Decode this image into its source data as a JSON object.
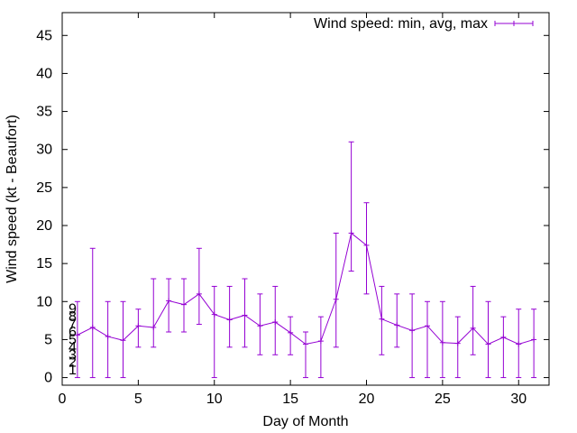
{
  "chart_data": {
    "type": "line",
    "title": "",
    "xlabel": "Day of Month",
    "ylabel": "Wind speed (kt - Beaufort)",
    "xlim": [
      0,
      32
    ],
    "ylim": [
      -1,
      48
    ],
    "x_ticks": [
      0,
      5,
      10,
      15,
      20,
      25,
      30
    ],
    "y_ticks": [
      0,
      5,
      10,
      15,
      20,
      25,
      30,
      35,
      40,
      45
    ],
    "grid": false,
    "legend_position": "top-right",
    "error_bars": true,
    "series": [
      {
        "name": "Wind speed: min, avg, max",
        "color": "#9400d3",
        "points": [
          {
            "x": 1,
            "avg": 5.6,
            "min": 0,
            "max": 10
          },
          {
            "x": 2,
            "avg": 6.6,
            "min": 0,
            "max": 17
          },
          {
            "x": 3,
            "avg": 5.4,
            "min": 0,
            "max": 10
          },
          {
            "x": 4,
            "avg": 4.9,
            "min": 0,
            "max": 10
          },
          {
            "x": 5,
            "avg": 6.8,
            "min": 4,
            "max": 9
          },
          {
            "x": 6,
            "avg": 6.6,
            "min": 4,
            "max": 13
          },
          {
            "x": 7,
            "avg": 10.1,
            "min": 6,
            "max": 13
          },
          {
            "x": 8,
            "avg": 9.6,
            "min": 6,
            "max": 13
          },
          {
            "x": 9,
            "avg": 11.0,
            "min": 7,
            "max": 17
          },
          {
            "x": 10,
            "avg": 8.3,
            "min": 0,
            "max": 12
          },
          {
            "x": 11,
            "avg": 7.6,
            "min": 4,
            "max": 12
          },
          {
            "x": 12,
            "avg": 8.2,
            "min": 4,
            "max": 13
          },
          {
            "x": 13,
            "avg": 6.8,
            "min": 3,
            "max": 11
          },
          {
            "x": 14,
            "avg": 7.3,
            "min": 3,
            "max": 12
          },
          {
            "x": 15,
            "avg": 5.9,
            "min": 3,
            "max": 8
          },
          {
            "x": 16,
            "avg": 4.4,
            "min": 0,
            "max": 6
          },
          {
            "x": 17,
            "avg": 4.8,
            "min": 0,
            "max": 8
          },
          {
            "x": 18,
            "avg": 10.3,
            "min": 4,
            "max": 19
          },
          {
            "x": 19,
            "avg": 19.0,
            "min": 14,
            "max": 31
          },
          {
            "x": 20,
            "avg": 17.4,
            "min": 11,
            "max": 23
          },
          {
            "x": 21,
            "avg": 7.7,
            "min": 3,
            "max": 12
          },
          {
            "x": 22,
            "avg": 6.9,
            "min": 4,
            "max": 11
          },
          {
            "x": 23,
            "avg": 6.2,
            "min": 0,
            "max": 11
          },
          {
            "x": 24,
            "avg": 6.8,
            "min": 0,
            "max": 10
          },
          {
            "x": 25,
            "avg": 4.6,
            "min": 0,
            "max": 10
          },
          {
            "x": 26,
            "avg": 4.5,
            "min": 0,
            "max": 8
          },
          {
            "x": 27,
            "avg": 6.5,
            "min": 3,
            "max": 12
          },
          {
            "x": 28,
            "avg": 4.4,
            "min": 0,
            "max": 10
          },
          {
            "x": 29,
            "avg": 5.3,
            "min": 0,
            "max": 8
          },
          {
            "x": 30,
            "avg": 4.4,
            "min": 0,
            "max": 9
          },
          {
            "x": 31,
            "avg": 5.0,
            "min": 0,
            "max": 9
          }
        ]
      }
    ],
    "beaufort_labels": [
      {
        "value": 1,
        "label": "1"
      },
      {
        "value": 2,
        "label": "2"
      },
      {
        "value": 3,
        "label": "3"
      },
      {
        "value": 4,
        "label": "4"
      },
      {
        "value": 5,
        "label": "5"
      },
      {
        "value": 6,
        "label": "6"
      },
      {
        "value": 7,
        "label": "7"
      },
      {
        "value": 8,
        "label": "8"
      },
      {
        "value": 9,
        "label": "9"
      }
    ]
  }
}
